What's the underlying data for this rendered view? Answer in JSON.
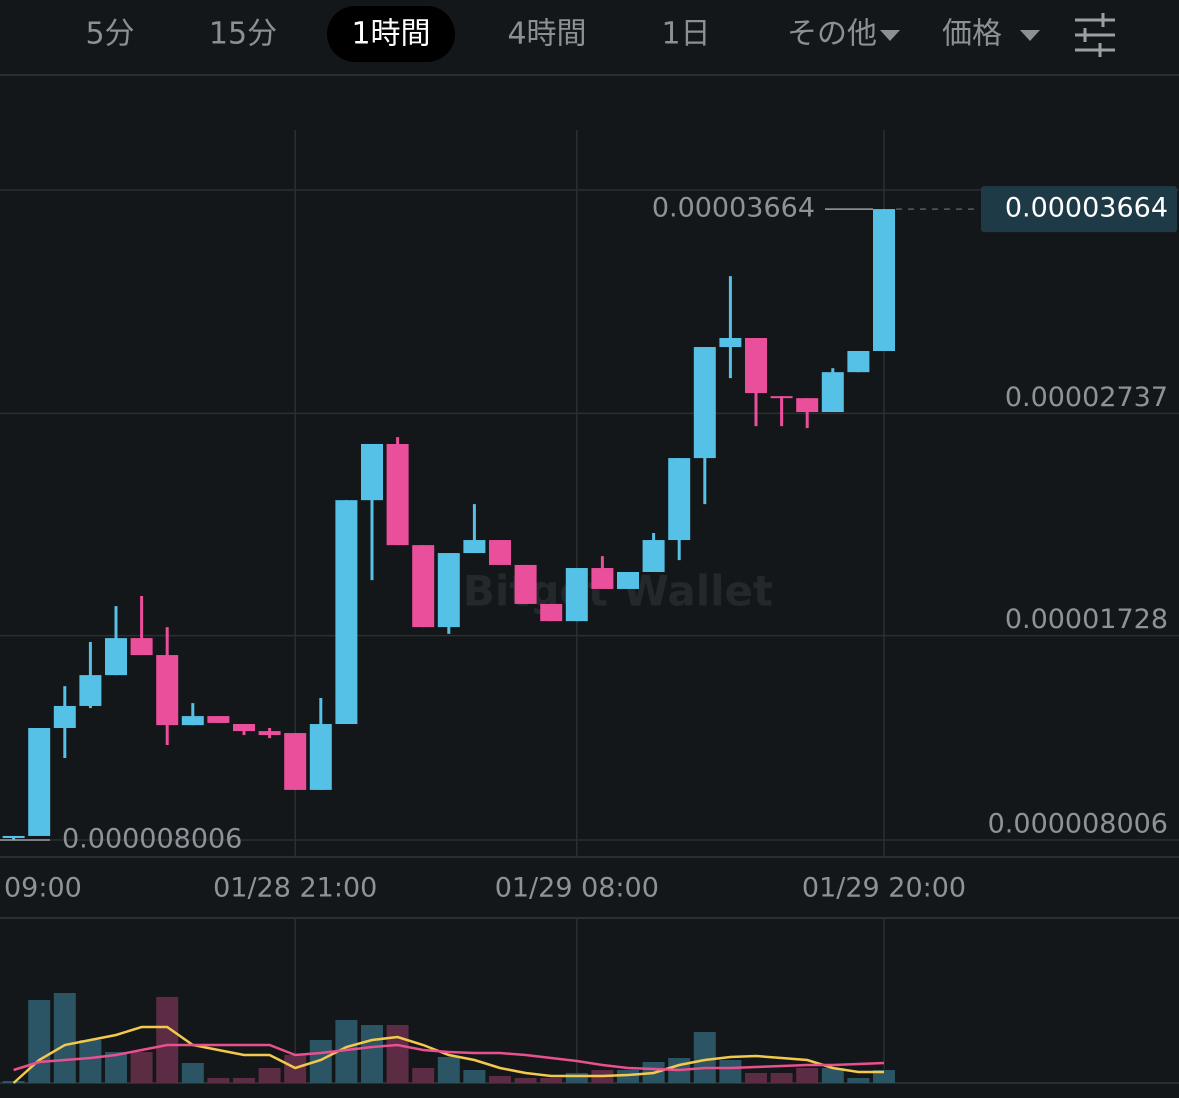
{
  "tabs": [
    "5分",
    "15分",
    "1時間",
    "4時間",
    "1日",
    "その他",
    "価格"
  ],
  "selected_tab": 2,
  "chart_data": [
    {
      "type": "candlestick",
      "watermark": "Bitget Wallet",
      "open": [
        8.097e-06,
        8.19e-06,
        1.309e-05,
        1.409e-05,
        1.549e-05,
        1.717e-05,
        1.64e-05,
        1.322e-05,
        1.363e-05,
        1.327e-05,
        1.295e-05,
        1.286e-05,
        1.028e-05,
        1.327e-05,
        2.343e-05,
        2.598e-05,
        2.139e-05,
        1.767e-05,
        2.103e-05,
        2.162e-05,
        2.049e-05,
        1.872e-05,
        1.794e-05,
        2.035e-05,
        1.94e-05,
        2.017e-05,
        2.162e-05,
        2.534e-05,
        3.038e-05,
        3.079e-05,
        2.815e-05,
        2.806e-05,
        2.743e-05,
        2.924e-05,
        3.02e-05
      ],
      "high": [
        8.19e-06,
        1.309e-05,
        1.499e-05,
        1.699e-05,
        1.862e-05,
        1.908e-05,
        1.767e-05,
        1.422e-05,
        1.363e-05,
        1.327e-05,
        1.309e-05,
        1.286e-05,
        1.445e-05,
        2.343e-05,
        2.598e-05,
        2.629e-05,
        2.139e-05,
        2.103e-05,
        2.325e-05,
        2.162e-05,
        2.049e-05,
        1.872e-05,
        2.035e-05,
        2.089e-05,
        2.017e-05,
        2.194e-05,
        2.534e-05,
        3.038e-05,
        3.36e-05,
        3.079e-05,
        2.815e-05,
        2.806e-05,
        2.942e-05,
        3.02e-05,
        3.664e-05
      ],
      "low": [
        8.006e-06,
        8.19e-06,
        1.173e-05,
        1.399e-05,
        1.549e-05,
        1.64e-05,
        1.232e-05,
        1.322e-05,
        1.332e-05,
        1.277e-05,
        1.263e-05,
        1.028e-05,
        1.028e-05,
        1.327e-05,
        1.98e-05,
        2.139e-05,
        1.767e-05,
        1.736e-05,
        2.103e-05,
        2.049e-05,
        1.872e-05,
        1.794e-05,
        1.794e-05,
        1.94e-05,
        1.94e-05,
        2.017e-05,
        2.071e-05,
        2.325e-05,
        2.897e-05,
        2.679e-05,
        2.679e-05,
        2.67e-05,
        2.743e-05,
        2.924e-05,
        3.02e-05
      ],
      "close": [
        8.19e-06,
        1.309e-05,
        1.409e-05,
        1.549e-05,
        1.717e-05,
        1.64e-05,
        1.322e-05,
        1.363e-05,
        1.332e-05,
        1.295e-05,
        1.277e-05,
        1.028e-05,
        1.327e-05,
        2.343e-05,
        2.598e-05,
        2.139e-05,
        1.767e-05,
        2.103e-05,
        2.162e-05,
        2.049e-05,
        1.872e-05,
        1.794e-05,
        2.035e-05,
        1.94e-05,
        2.017e-05,
        2.162e-05,
        2.534e-05,
        3.038e-05,
        3.079e-05,
        2.829e-05,
        2.806e-05,
        2.743e-05,
        2.924e-05,
        3.02e-05,
        3.664e-05
      ],
      "up_color": "#56c1e6",
      "down_color": "#ea4f9b",
      "ylim": [
        7.235e-06,
        4.023e-05
      ],
      "yticks": [
        2.737e-05,
        1.728e-05,
        8.006e-06
      ],
      "xticks": [
        {
          "value": -1,
          "label": "09:00"
        },
        {
          "value": 11,
          "label": "01/28 21:00"
        },
        {
          "value": 22,
          "label": "01/29 08:00"
        },
        {
          "value": 34,
          "label": "01/29 20:00"
        }
      ],
      "max_marker": 3.664e-05,
      "min_marker": 8.006e-06,
      "last_price": 3.664e-05
    },
    {
      "type": "volume",
      "values": [
        2,
        83,
        90,
        43,
        31,
        31,
        86,
        20,
        5,
        5,
        15,
        28,
        43,
        63,
        58,
        58,
        15,
        26,
        13,
        7,
        5,
        5,
        10,
        13,
        13,
        21,
        25,
        51,
        23,
        10,
        10,
        15,
        15,
        5,
        13
      ],
      "up_color": "#2b5565",
      "down_color": "#5c2b44",
      "ylim": [
        0,
        165
      ],
      "series": [
        {
          "color": "#f2c94c",
          "values": [
            0,
            23,
            38,
            43,
            48,
            56,
            56,
            38,
            33,
            28,
            28,
            15,
            23,
            36,
            43,
            46,
            38,
            28,
            23,
            15,
            10,
            7,
            7,
            7,
            8,
            10,
            18,
            23,
            26,
            27,
            25,
            23,
            15,
            11,
            11
          ]
        },
        {
          "color": "#e8508f",
          "values": [
            13,
            21,
            23,
            25,
            28,
            33,
            38,
            38,
            38,
            38,
            38,
            28,
            30,
            33,
            36,
            38,
            33,
            31,
            30,
            30,
            28,
            25,
            22,
            18,
            15,
            14,
            13,
            15,
            15,
            16,
            17,
            18,
            18,
            19,
            20
          ]
        }
      ]
    }
  ]
}
